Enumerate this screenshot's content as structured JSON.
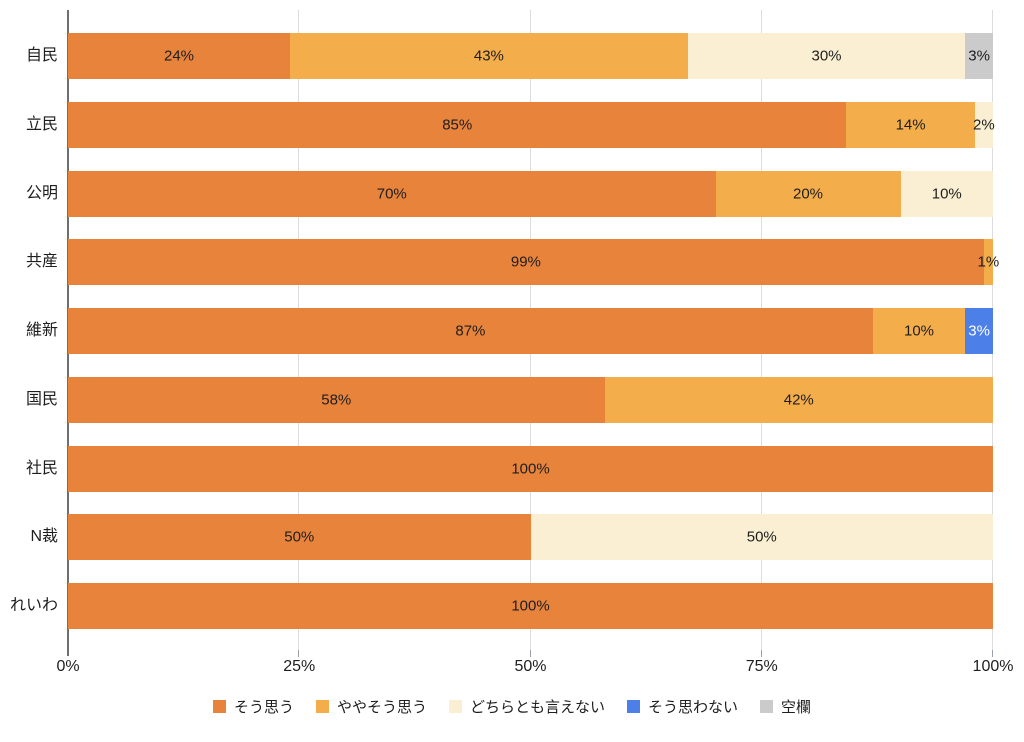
{
  "chart_data": {
    "type": "bar",
    "orientation": "horizontal",
    "stacking": "percent",
    "title": "",
    "categories": [
      "自民",
      "立民",
      "公明",
      "共産",
      "維新",
      "国民",
      "社民",
      "N裁",
      "れいわ"
    ],
    "series": [
      {
        "name": "そう思う",
        "color": "#E8833C",
        "label_color": "#1E1E1E",
        "values": [
          24,
          85,
          70,
          99,
          87,
          58,
          100,
          50,
          100
        ]
      },
      {
        "name": "ややそう思う",
        "color": "#F3AD4B",
        "label_color": "#1E1E1E",
        "values": [
          43,
          14,
          20,
          1,
          10,
          42,
          0,
          0,
          0
        ]
      },
      {
        "name": "どちらとも言えない",
        "color": "#FAEFD3",
        "label_color": "#1E1E1E",
        "values": [
          30,
          2,
          10,
          0,
          0,
          0,
          0,
          50,
          0
        ]
      },
      {
        "name": "そう思わない",
        "color": "#4D7FE9",
        "label_color": "#FFFFFF",
        "values": [
          0,
          0,
          0,
          0,
          3,
          0,
          0,
          0,
          0
        ]
      },
      {
        "name": "空欄",
        "color": "#CBCBCB",
        "label_color": "#1E1E1E",
        "values": [
          3,
          0,
          0,
          0,
          0,
          0,
          0,
          0,
          0
        ]
      }
    ],
    "bar_label_suffix": "%",
    "xticks": [
      "0%",
      "25%",
      "50%",
      "75%",
      "100%"
    ],
    "xlim": [
      0,
      100
    ],
    "grid": true,
    "legend_position": "bottom"
  },
  "style_colors": {
    "background": "#FFFFFF",
    "axis_line": "#6F6F6F",
    "gridline": "#DADCE0",
    "tick": "#9AA0A6",
    "text": "#1E1E1E"
  }
}
